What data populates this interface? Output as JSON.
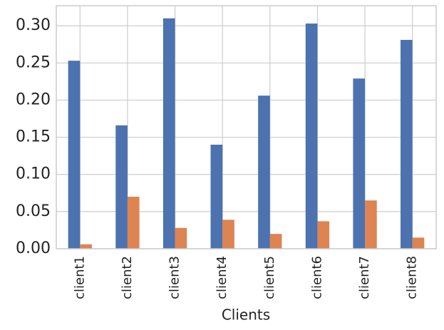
{
  "chart_data": {
    "type": "bar",
    "x_label": "Clients",
    "categories": [
      "client1",
      "client2",
      "client3",
      "client4",
      "client5",
      "client6",
      "client7",
      "client8"
    ],
    "series": [
      {
        "color": "#4c72b0",
        "values": [
          0.253,
          0.166,
          0.31,
          0.14,
          0.206,
          0.303,
          0.229,
          0.281
        ]
      },
      {
        "color": "#dd8452",
        "values": [
          0.006,
          0.07,
          0.028,
          0.039,
          0.02,
          0.037,
          0.065,
          0.015
        ]
      }
    ],
    "ylim": [
      0,
      0.327
    ],
    "yticks": [
      {
        "value": 0,
        "label": "0.00"
      },
      {
        "value": 0.05,
        "label": "0.05"
      },
      {
        "value": 0.1,
        "label": "0.10"
      },
      {
        "value": 0.15,
        "label": "0.15"
      },
      {
        "value": 0.2,
        "label": "0.20"
      },
      {
        "value": 0.25,
        "label": "0.25"
      },
      {
        "value": 0.3,
        "label": "0.30"
      }
    ],
    "grid": true
  }
}
